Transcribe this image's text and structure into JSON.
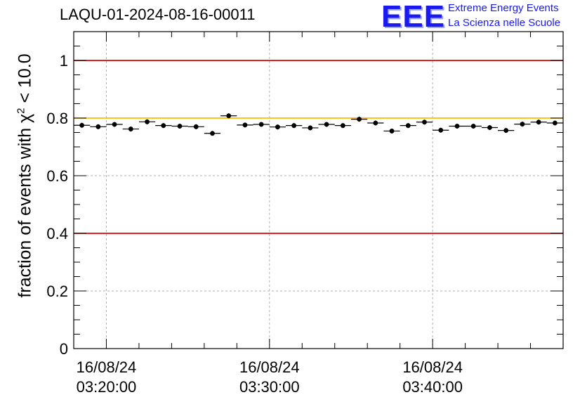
{
  "chart_data": {
    "type": "scatter",
    "title": "LAQU-01-2024-08-16-00011",
    "ylabel_prefix": "fraction of events with ",
    "ylabel_var": "χ",
    "ylabel_sup": "2",
    "ylabel_suffix": " < 10.0",
    "xlabel": "",
    "ylim": [
      0,
      1.1
    ],
    "y_ticks": [
      "0",
      "0.2",
      "0.4",
      "0.6",
      "0.8",
      "1"
    ],
    "x_ticks": [
      {
        "date": "16/08/24",
        "time": "03:20:00"
      },
      {
        "date": "16/08/24",
        "time": "03:30:00"
      },
      {
        "date": "16/08/24",
        "time": "03:40:00"
      }
    ],
    "x_range_minutes_from_first_tick": [
      -2,
      28
    ],
    "bin_width_minutes": 1,
    "grid": true,
    "reference_lines": [
      {
        "y": 1.0,
        "color": "#dd0000"
      },
      {
        "y": 0.8,
        "color": "#ffbb00"
      },
      {
        "y": 0.4,
        "color": "#dd0000"
      }
    ],
    "points": [
      0.775,
      0.77,
      0.778,
      0.762,
      0.787,
      0.774,
      0.772,
      0.77,
      0.747,
      0.808,
      0.776,
      0.778,
      0.769,
      0.774,
      0.766,
      0.778,
      0.774,
      0.796,
      0.783,
      0.755,
      0.774,
      0.786,
      0.758,
      0.772,
      0.772,
      0.767,
      0.757,
      0.779,
      0.786,
      0.783
    ]
  },
  "logo": {
    "mark": "EEE",
    "line1": "Extreme Energy Events",
    "line2": "La Scienza nelle Scuole"
  }
}
